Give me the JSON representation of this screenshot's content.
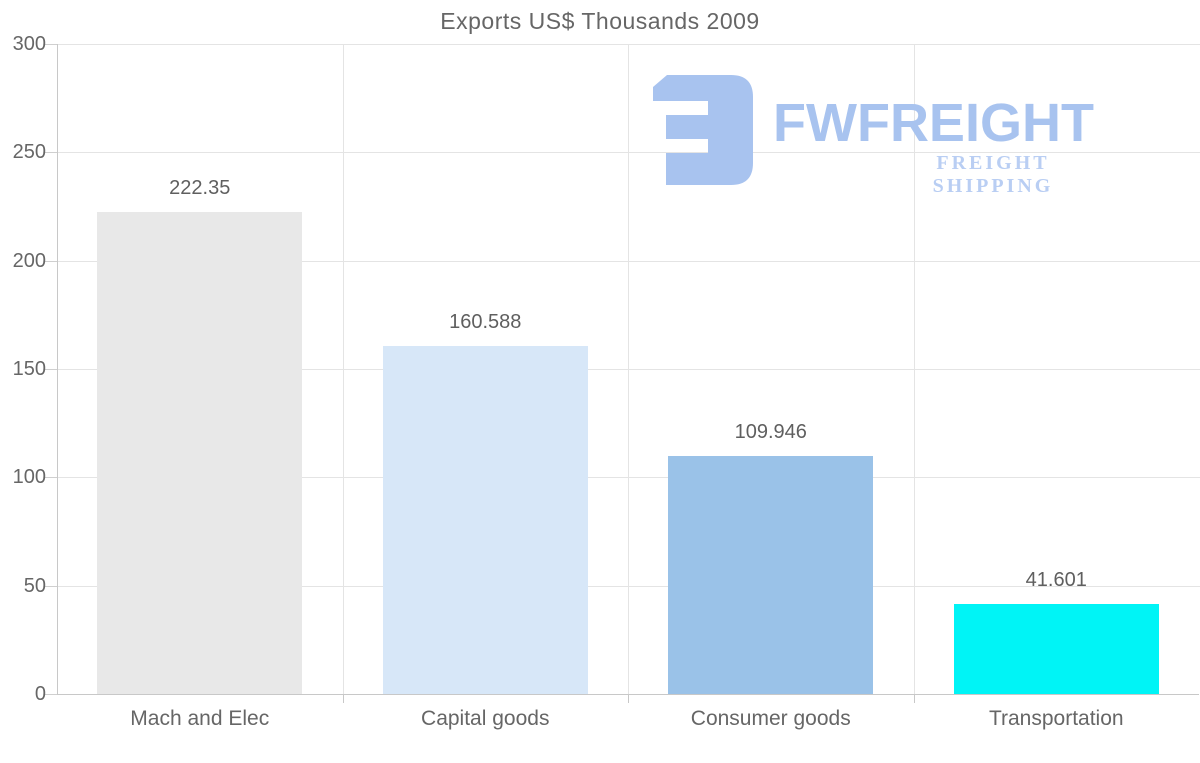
{
  "title": "Exports US$ Thousands 2009",
  "watermark": {
    "brand": "FWFREIGHT",
    "tagline": "FREIGHT SHIPPING",
    "color": "#a8c3ef"
  },
  "chart_data": {
    "type": "bar",
    "title": "Exports US$ Thousands 2009",
    "categories": [
      "Mach and Elec",
      "Capital goods",
      "Consumer goods",
      "Transportation"
    ],
    "values": [
      222.35,
      160.588,
      109.946,
      41.601
    ],
    "value_labels": [
      "222.35",
      "160.588",
      "109.946",
      "41.601"
    ],
    "bar_colors": [
      "#e8e8e8",
      "#d7e7f8",
      "#9ac2e8",
      "#00f4f6"
    ],
    "xlabel": "",
    "ylabel": "",
    "ylim": [
      0,
      300
    ],
    "yticks": [
      0,
      50,
      100,
      150,
      200,
      250,
      300
    ],
    "grid": true,
    "legend": false,
    "colors": {
      "grid": "#e4e4e4",
      "axis": "#c8c8c8",
      "text": "#666666"
    }
  }
}
